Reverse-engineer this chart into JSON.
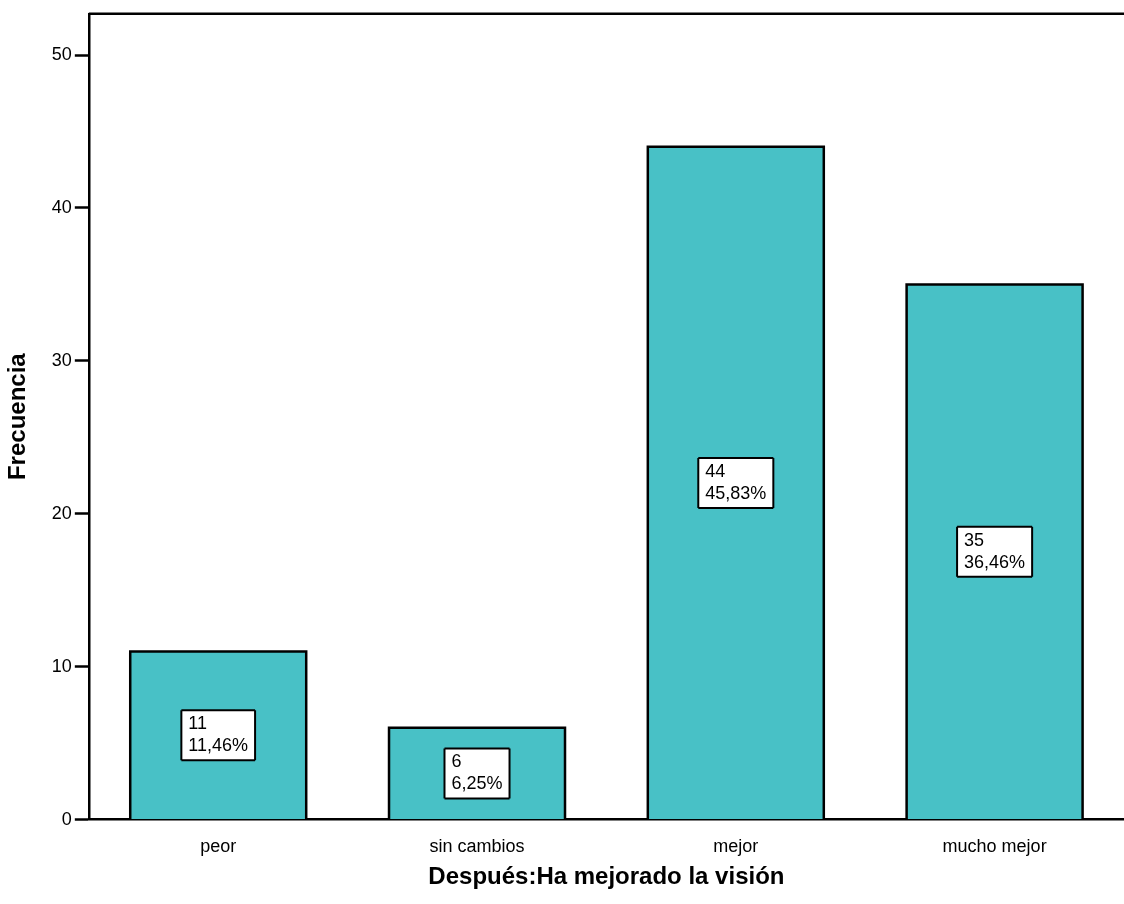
{
  "chart_data": {
    "type": "bar",
    "xlabel": "Después:Ha mejorado la visión",
    "ylabel": "Frecuencia",
    "categories": [
      "peor",
      "sin cambios",
      "mejor",
      "mucho mejor"
    ],
    "values": [
      11,
      6,
      44,
      35
    ],
    "value_labels": [
      "11\n11,46%",
      "6\n6,25%",
      "44\n45,83%",
      "35\n36,46%"
    ],
    "color": "#48c1c6",
    "ylim": [
      0,
      52.7
    ],
    "yticks": [
      0,
      10,
      20,
      30,
      40,
      50
    ],
    "grid": false,
    "legend": false
  }
}
